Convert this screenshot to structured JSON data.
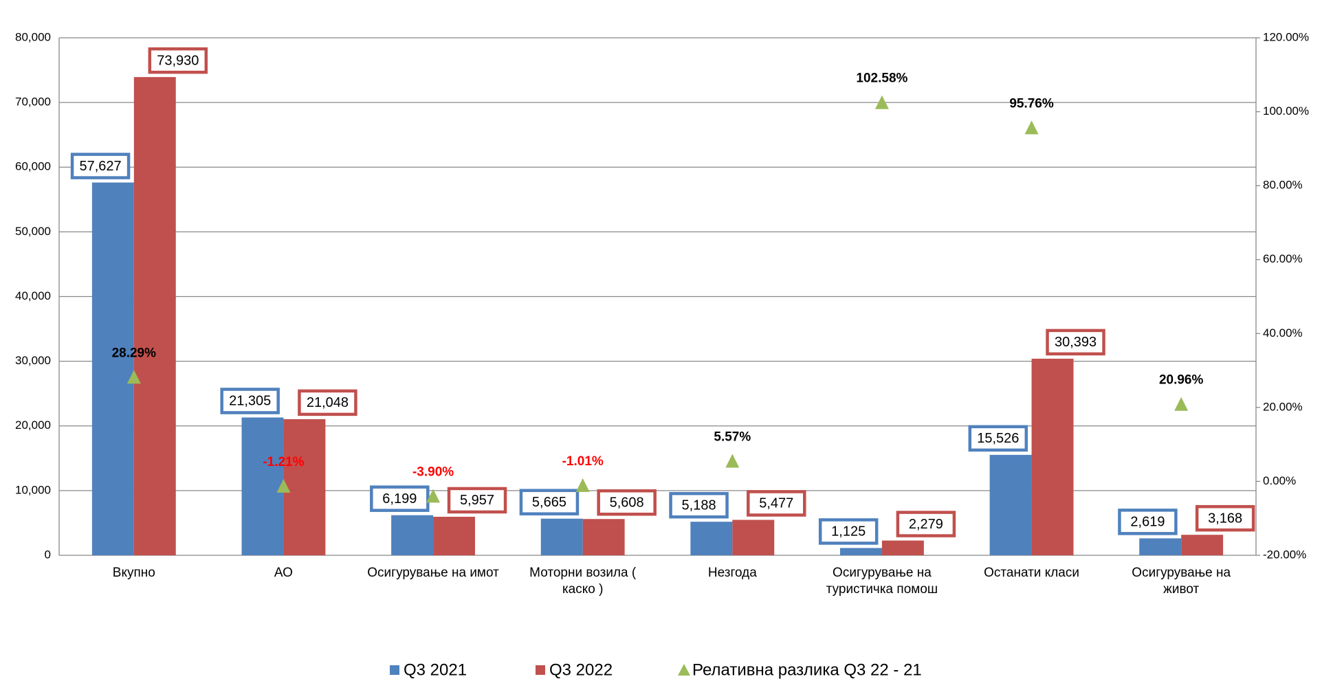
{
  "chart_data": {
    "type": "bar",
    "categories": [
      "Вкупно",
      "АО",
      "Осигурување на имот",
      "Моторни возила ( каско )",
      "Незгода",
      "Осигурување на туристичка помош",
      "Останати класи",
      "Осигурување на живот"
    ],
    "series": [
      {
        "name": "Q3 2021",
        "color": "#4f81bd",
        "values": [
          57627,
          21305,
          6199,
          5665,
          5188,
          1125,
          15526,
          2619
        ],
        "value_labels": [
          "57,627",
          "21,305",
          "6,199",
          "5,665",
          "5,188",
          "1,125",
          "15,526",
          "2,619"
        ]
      },
      {
        "name": "Q3 2022",
        "color": "#c0504d",
        "values": [
          73930,
          21048,
          5957,
          5608,
          5477,
          2279,
          30393,
          3168
        ],
        "value_labels": [
          "73,930",
          "21,048",
          "5,957",
          "5,608",
          "5,477",
          "2,279",
          "30,393",
          "3,168"
        ]
      },
      {
        "name": "Релативна разлика Q3 22 - 21",
        "type": "scatter",
        "axis": "y2",
        "marker": "triangle",
        "color": "#9bbb59",
        "values": [
          28.29,
          -1.21,
          -3.9,
          -1.01,
          5.57,
          102.58,
          95.76,
          20.96
        ],
        "value_labels": [
          "28.29%",
          "-1.21%",
          "-3.90%",
          "-1.01%",
          "5.57%",
          "102.58%",
          "95.76%",
          "20.96%"
        ]
      }
    ],
    "ylim": [
      0,
      80000
    ],
    "yticks": [
      0,
      {
        "value": 10000,
        "label": "10,000"
      },
      {
        "value": 20000,
        "label": "20,000"
      },
      {
        "value": 30000,
        "label": "30,000"
      },
      {
        "value": 40000,
        "label": "40,000"
      },
      {
        "value": 50000,
        "label": "50,000"
      },
      {
        "value": 60000,
        "label": "60,000"
      },
      {
        "value": 70000,
        "label": "70,000"
      },
      {
        "value": 80000,
        "label": "80,000"
      }
    ],
    "y2lim": [
      -20,
      120
    ],
    "y2ticks": [
      {
        "value": -20,
        "label": "-20.00%"
      },
      {
        "value": 0,
        "label": "0.00%"
      },
      {
        "value": 20,
        "label": "20.00%"
      },
      {
        "value": 40,
        "label": "40.00%"
      },
      {
        "value": 60,
        "label": "60.00%"
      },
      {
        "value": 80,
        "label": "80.00%"
      },
      {
        "value": 100,
        "label": "100.00%"
      },
      {
        "value": 120,
        "label": "120.00%"
      }
    ],
    "grid": true,
    "legend": "bottom"
  }
}
